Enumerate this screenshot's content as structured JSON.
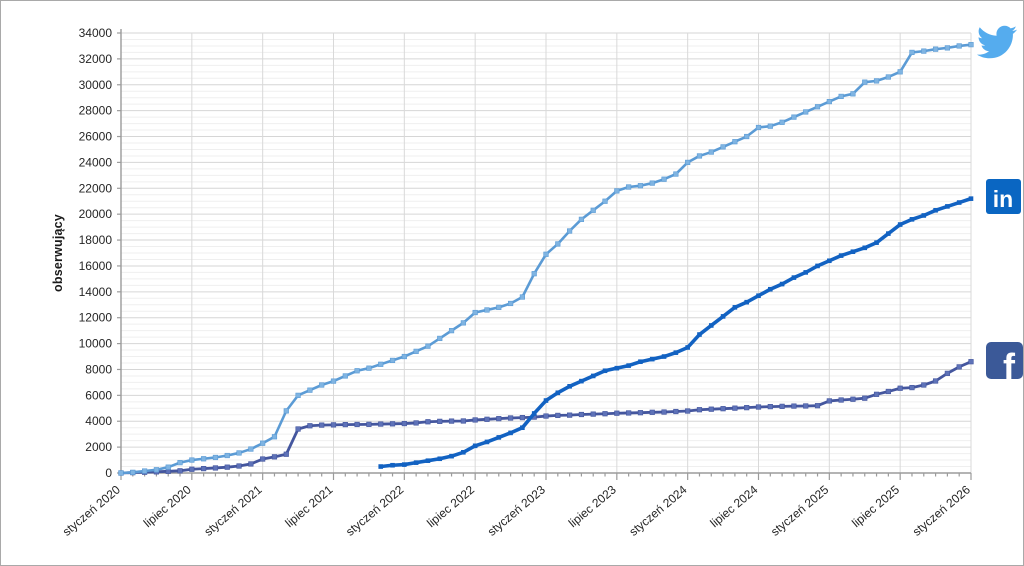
{
  "chart_data": {
    "type": "line",
    "title": "",
    "ylabel": "obserwujący",
    "ylim": [
      0,
      34000
    ],
    "y_tick_step": 2000,
    "y_minor_step": 500,
    "grid": true,
    "months_total": 72,
    "x_tick_every_months": 6,
    "x_tick_labels": [
      "styczeń 2020",
      "lipiec 2020",
      "styczeń 2021",
      "lipiec 2021",
      "styczeń 2022",
      "lipiec 2022",
      "styczeń 2023",
      "lipiec 2023",
      "styczeń 2024",
      "lipiec 2024",
      "styczeń 2025",
      "lipiec 2025",
      "styczeń 2026"
    ],
    "legend_position": "right-icons",
    "series": [
      {
        "name": "Facebook",
        "icon": "facebook-icon",
        "color": "#44569E",
        "marker_color": "#5E72B8",
        "line_width": 2.8,
        "marker_size": 4.6,
        "start_month": 0,
        "values": [
          0,
          30,
          60,
          90,
          130,
          170,
          290,
          340,
          390,
          450,
          540,
          700,
          1080,
          1250,
          1450,
          3400,
          3650,
          3700,
          3720,
          3740,
          3750,
          3760,
          3780,
          3800,
          3820,
          3870,
          3960,
          3990,
          4010,
          4020,
          4100,
          4150,
          4200,
          4250,
          4280,
          4320,
          4400,
          4450,
          4470,
          4520,
          4550,
          4580,
          4620,
          4640,
          4660,
          4690,
          4710,
          4750,
          4790,
          4890,
          4930,
          4970,
          5010,
          5050,
          5100,
          5130,
          5150,
          5170,
          5180,
          5200,
          5570,
          5640,
          5700,
          5780,
          6080,
          6300,
          6550,
          6600,
          6800,
          7110,
          7700,
          8200,
          8600
        ]
      },
      {
        "name": "Twitter",
        "icon": "twitter-icon",
        "color": "#5B9BD5",
        "marker_color": "#7FB4E2",
        "line_width": 2.6,
        "marker_size": 4.6,
        "start_month": 0,
        "values": [
          0,
          50,
          150,
          250,
          450,
          800,
          1000,
          1100,
          1200,
          1350,
          1550,
          1850,
          2300,
          2800,
          4800,
          6000,
          6400,
          6800,
          7100,
          7500,
          7900,
          8100,
          8400,
          8700,
          9000,
          9400,
          9800,
          10400,
          11000,
          11600,
          12400,
          12600,
          12800,
          13100,
          13600,
          15400,
          16900,
          17700,
          18700,
          19600,
          20300,
          21000,
          21800,
          22100,
          22200,
          22400,
          22700,
          23100,
          24000,
          24500,
          24800,
          25200,
          25600,
          26000,
          26700,
          26800,
          27100,
          27500,
          27900,
          28300,
          28700,
          29100,
          29300,
          30200,
          30300,
          30600,
          31000,
          32500,
          32600,
          32750,
          32850,
          33000,
          33100
        ]
      },
      {
        "name": "LinkedIn",
        "icon": "linkedin-icon",
        "color": "#1262C2",
        "marker_color": "#1262C2",
        "line_width": 3.6,
        "marker_size": 4.0,
        "start_month": 22,
        "values": [
          500,
          600,
          650,
          800,
          950,
          1100,
          1300,
          1600,
          2100,
          2400,
          2750,
          3100,
          3500,
          4600,
          5600,
          6200,
          6700,
          7100,
          7500,
          7900,
          8100,
          8300,
          8600,
          8800,
          9000,
          9300,
          9700,
          10700,
          11400,
          12100,
          12800,
          13200,
          13700,
          14200,
          14600,
          15100,
          15500,
          16000,
          16400,
          16800,
          17100,
          17400,
          17800,
          18500,
          19200,
          19600,
          19900,
          20300,
          20600,
          20900,
          21200
        ]
      }
    ],
    "icon_colors": {
      "twitter": "#55ACEE",
      "linkedin": "#0A66C2",
      "facebook": "#3B5998"
    }
  }
}
